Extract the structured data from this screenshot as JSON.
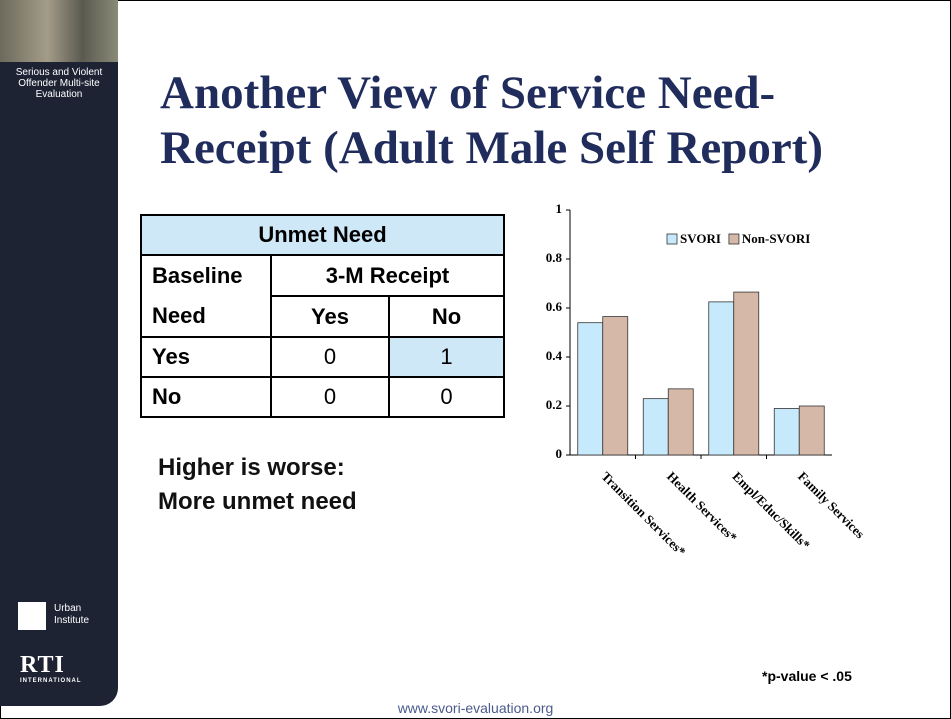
{
  "sidebar": {
    "project": "Serious and Violent Offender Multi-site Evaluation",
    "urban": "Urban Institute",
    "rti": "RTI",
    "rti_sub": "INTERNATIONAL"
  },
  "title": [
    "Another View of Service Need-",
    "Receipt (Adult Male Self Report)"
  ],
  "table": {
    "title": "Unmet Need",
    "row_header": "Baseline Need",
    "column_group": "3-M Receipt",
    "columns": [
      "Yes",
      "No"
    ],
    "rows": [
      {
        "label": "Yes",
        "values": [
          0,
          1
        ]
      },
      {
        "label": "No",
        "values": [
          0,
          0
        ]
      }
    ]
  },
  "note": [
    "Higher is worse:",
    "More unmet need"
  ],
  "chart_data": {
    "type": "bar",
    "categories": [
      "Transition Services*",
      "Health Services*",
      "Empl/Educ/Skills*",
      "Family Services"
    ],
    "series": [
      {
        "name": "SVORI",
        "color": "#c6e9fb",
        "values": [
          0.54,
          0.23,
          0.625,
          0.19
        ]
      },
      {
        "name": "Non-SVORI",
        "color": "#d6b8a8",
        "values": [
          0.565,
          0.27,
          0.665,
          0.2
        ]
      }
    ],
    "ylim": [
      0,
      1
    ],
    "yticks": [
      0,
      0.2,
      0.4,
      0.6,
      0.8,
      1
    ],
    "legend": "top"
  },
  "footnote": "*p-value < .05",
  "footer": "www.svori-evaluation.org"
}
